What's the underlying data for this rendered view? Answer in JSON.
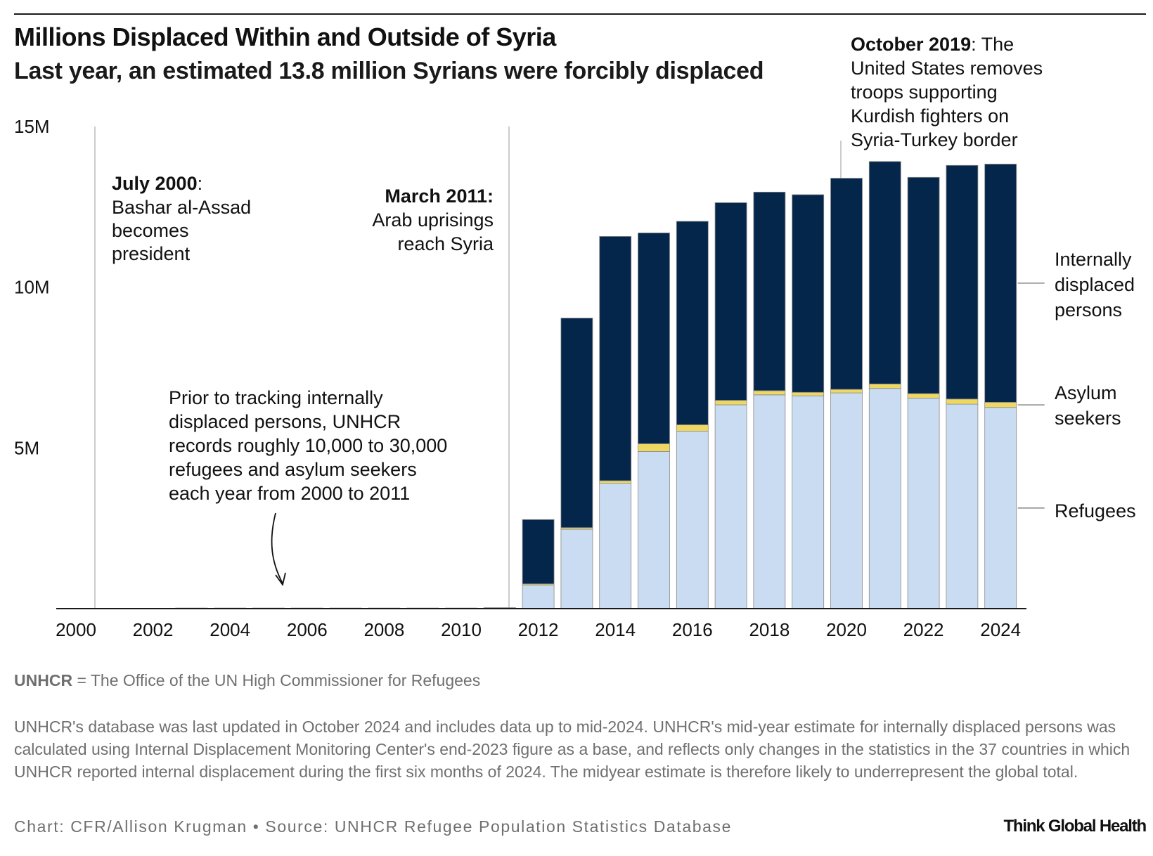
{
  "header": {
    "title": "Millions Displaced Within and Outside of Syria",
    "subtitle": "Last year, an estimated 13.8 million Syrians were forcibly displaced"
  },
  "chart_data": {
    "type": "bar",
    "stacked": true,
    "title": "Millions Displaced Within and Outside of Syria",
    "x": [
      2000,
      2001,
      2002,
      2003,
      2004,
      2005,
      2006,
      2007,
      2008,
      2009,
      2010,
      2011,
      2012,
      2013,
      2014,
      2015,
      2016,
      2017,
      2018,
      2019,
      2020,
      2021,
      2022,
      2023,
      2024
    ],
    "xticks": [
      2000,
      2002,
      2004,
      2006,
      2008,
      2010,
      2012,
      2014,
      2016,
      2018,
      2020,
      2022,
      2024
    ],
    "yticks": [
      {
        "value": 5,
        "label": "5M"
      },
      {
        "value": 10,
        "label": "10M"
      },
      {
        "value": 15,
        "label": "15M"
      }
    ],
    "ylim": [
      0,
      15
    ],
    "yunit": "millions",
    "xlabel": "",
    "ylabel": "",
    "series": [
      {
        "name": "Refugees",
        "color": "#c9dcf2",
        "values": [
          0.01,
          0.01,
          0.01,
          0.02,
          0.02,
          0.02,
          0.02,
          0.02,
          0.02,
          0.02,
          0.02,
          0.02,
          0.73,
          2.47,
          3.9,
          4.89,
          5.52,
          6.34,
          6.65,
          6.62,
          6.71,
          6.85,
          6.55,
          6.36,
          6.26
        ]
      },
      {
        "name": "Asylum seekers",
        "color": "#eed862",
        "values": [
          0.0,
          0.0,
          0.0,
          0.0,
          0.0,
          0.0,
          0.0,
          0.0,
          0.0,
          0.0,
          0.0,
          0.01,
          0.04,
          0.05,
          0.08,
          0.24,
          0.2,
          0.14,
          0.13,
          0.11,
          0.11,
          0.14,
          0.14,
          0.16,
          0.16
        ]
      },
      {
        "name": "Internally displaced persons",
        "color": "#04264a",
        "values": [
          0,
          0,
          0,
          0,
          0,
          0,
          0,
          0,
          0,
          0,
          0,
          0,
          2.0,
          6.52,
          7.6,
          6.56,
          6.33,
          6.15,
          6.18,
          6.15,
          6.57,
          6.92,
          6.73,
          7.27,
          7.41
        ]
      }
    ],
    "legend": [
      {
        "label": "Internally displaced persons",
        "lines": [
          "Internally",
          "displaced",
          "persons"
        ]
      },
      {
        "label": "Asylum seekers",
        "lines": [
          "Asylum",
          "seekers"
        ]
      },
      {
        "label": "Refugees",
        "lines": [
          "Refugees"
        ]
      }
    ],
    "annotations": [
      {
        "year": 2000,
        "date": "July 2000",
        "lines": [
          "Bashar al-Assad",
          "becomes",
          "president"
        ]
      },
      {
        "year": 2011,
        "date": "March 2011:",
        "lines": [
          "Arab uprisings",
          "reach Syria"
        ]
      },
      {
        "year": 2019.7,
        "date": "October 2019",
        "first_line_rest": ": The",
        "lines": [
          "United States removes",
          "troops supporting",
          "Kurdish fighters on",
          "Syria-Turkey border"
        ]
      }
    ],
    "callout": {
      "lines": [
        "Prior to tracking internally",
        "displaced persons, UNHCR",
        "records roughly 10,000 to 30,000",
        "refugees and asylum seekers",
        "each year from 2000 to 2011"
      ]
    },
    "colors": {
      "axis": "#1a1a1a",
      "event_line": "#bbbbbb",
      "legend_line": "#888888"
    }
  },
  "notes": {
    "abbrev_term": "UNHCR",
    "abbrev_text": " = The Office of the UN High Commissioner for Refugees",
    "body": "UNHCR's database was last updated in October 2024 and includes data up to mid-2024. UNHCR's mid-year estimate for internally displaced persons was calculated using Internal Displacement Monitoring Center's end-2023 figure as a base, and reflects only changes in the statistics in the 37 countries in which UNHCR reported internal displacement during the first six months of 2024. The midyear estimate is therefore likely to underrepresent the global total."
  },
  "footer": {
    "credit": "Chart: CFR/Allison Krugman • Source: UNHCR Refugee Population Statistics Database",
    "logo_text": "Think Global Health"
  }
}
